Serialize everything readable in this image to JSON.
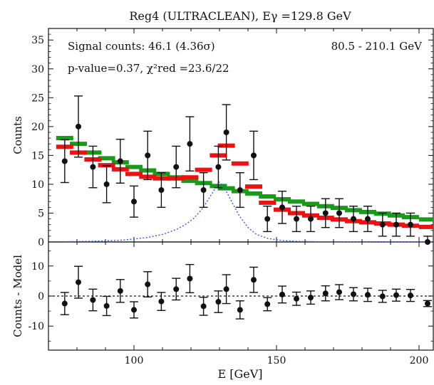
{
  "title": "Reg4 (ULTRACLEAN), Eγ =129.8 GeV",
  "colors": {
    "background": "#ffffff",
    "axis": "#111111",
    "data_points": "#111111",
    "model_green": "#1a9a1a",
    "model_red": "#ee1111",
    "signal_blue": "#3355ff"
  },
  "chart_data": [
    {
      "panel": "top",
      "type": "scatter",
      "ylabel": "Counts",
      "xlim": [
        70,
        205
      ],
      "ylim": [
        0,
        37
      ],
      "yticks": [
        0,
        5,
        10,
        15,
        20,
        25,
        30,
        35
      ],
      "annotations": {
        "signal": "Signal counts: 46.1 (4.36σ)",
        "pvalue": "p-value=0.37, χ²red =23.6/22",
        "range": "80.5 - 210.1 GeV"
      },
      "series": [
        {
          "kind": "points_with_errors",
          "x": [
            75.7,
            80.5,
            85.6,
            90.4,
            95.2,
            100.0,
            104.8,
            109.6,
            114.8,
            119.6,
            124.4,
            129.6,
            132.4,
            137.2,
            142.0,
            146.8,
            152.0,
            157.0,
            162.0,
            167.2,
            172.0,
            177.0,
            182.0,
            187.2,
            192.0,
            197.0,
            203.0
          ],
          "y": [
            14,
            20,
            13,
            10,
            14,
            7,
            15,
            9,
            13,
            17,
            9,
            13,
            19,
            9,
            15,
            4,
            6,
            4,
            4,
            5,
            5,
            4,
            4,
            3,
            3,
            3,
            0
          ],
          "err": [
            3.7,
            5.3,
            3.6,
            3.2,
            3.8,
            2.7,
            4.2,
            3.0,
            3.6,
            4.7,
            3.0,
            3.6,
            4.8,
            3.0,
            4.2,
            2.2,
            2.8,
            2.2,
            2.2,
            2.5,
            2.5,
            2.2,
            2.2,
            2.0,
            2.0,
            2.0,
            1.0
          ]
        },
        {
          "kind": "step_segments",
          "x": [
            75.7,
            80.5,
            85.6,
            90.4,
            95.2,
            100.0,
            104.8,
            109.6,
            114.8,
            119.6,
            124.4,
            129.6,
            132.4,
            137.2,
            142.0,
            146.8,
            152.0,
            157.0,
            162.0,
            167.2,
            172.0,
            177.0,
            182.0,
            187.2,
            192.0,
            197.0,
            203.0
          ],
          "y": [
            18.0,
            17.0,
            15.5,
            14.5,
            13.8,
            13.0,
            12.4,
            11.8,
            11.2,
            10.6,
            10.2,
            9.7,
            9.3,
            8.8,
            8.4,
            7.9,
            7.4,
            7.0,
            6.6,
            6.2,
            5.9,
            5.5,
            5.2,
            4.9,
            4.6,
            4.3,
            3.9
          ],
          "color": "#1a9a1a"
        },
        {
          "kind": "step_segments",
          "x": [
            75.7,
            80.5,
            85.6,
            90.4,
            95.2,
            100.0,
            104.8,
            109.6,
            114.8,
            119.6,
            124.4,
            129.6,
            132.4,
            137.2,
            142.0,
            146.8,
            152.0,
            157.0,
            162.0,
            167.2,
            172.0,
            177.0,
            182.0,
            187.2,
            192.0,
            197.0,
            203.0
          ],
          "y": [
            16.5,
            15.5,
            14.3,
            13.3,
            12.6,
            11.8,
            11.3,
            11.0,
            11.0,
            11.2,
            12.5,
            15.0,
            16.7,
            13.6,
            9.6,
            6.8,
            5.6,
            5.0,
            4.6,
            4.2,
            3.9,
            3.6,
            3.4,
            3.2,
            3.0,
            2.8,
            2.6
          ],
          "color": "#ee1111"
        },
        {
          "kind": "dotted_curve",
          "x": [
            75,
            80,
            85,
            90,
            95,
            100,
            105,
            110,
            115,
            118,
            121,
            124,
            126,
            128,
            129.8,
            131.5,
            133,
            135,
            137,
            140,
            143,
            147,
            152,
            158,
            165,
            175,
            190,
            205
          ],
          "y": [
            0.05,
            0.08,
            0.12,
            0.2,
            0.3,
            0.5,
            0.8,
            1.3,
            2.2,
            3.0,
            4.1,
            5.8,
            7.3,
            8.9,
            10.4,
            9.6,
            8.2,
            6.3,
            4.5,
            2.5,
            1.3,
            0.6,
            0.25,
            0.1,
            0.04,
            0.02,
            0.01,
            0.0
          ],
          "color": "#3355ff"
        }
      ]
    },
    {
      "panel": "bottom",
      "type": "scatter",
      "ylabel": "Counts - Model",
      "xlabel": "E [GeV]",
      "xlim": [
        70,
        205
      ],
      "xticks": [
        100,
        150,
        200
      ],
      "ylim": [
        -18,
        18
      ],
      "yticks": [
        -10,
        0,
        10
      ],
      "reference_line": 0,
      "series": [
        {
          "kind": "points_with_errors",
          "x": [
            75.7,
            80.5,
            85.6,
            90.4,
            95.2,
            100.0,
            104.8,
            109.6,
            114.8,
            119.6,
            124.4,
            129.6,
            132.4,
            137.2,
            142.0,
            146.8,
            152.0,
            157.0,
            162.0,
            167.2,
            172.0,
            177.0,
            182.0,
            187.2,
            192.0,
            197.0,
            203.0
          ],
          "y": [
            -2.5,
            4.6,
            -1.3,
            -3.3,
            1.7,
            -4.6,
            3.9,
            -1.8,
            2.3,
            5.8,
            -3.4,
            -1.9,
            2.3,
            -4.6,
            5.4,
            -2.7,
            0.5,
            -0.9,
            -0.5,
            0.9,
            1.3,
            0.6,
            0.4,
            -0.1,
            0.3,
            0.2,
            -2.5
          ],
          "err": [
            3.7,
            5.3,
            3.6,
            3.2,
            3.8,
            2.7,
            4.2,
            3.0,
            3.6,
            4.7,
            3.0,
            3.6,
            4.8,
            3.0,
            4.2,
            2.2,
            2.8,
            2.2,
            2.2,
            2.5,
            2.5,
            2.2,
            2.2,
            2.0,
            2.0,
            2.0,
            1.0
          ]
        }
      ]
    }
  ]
}
